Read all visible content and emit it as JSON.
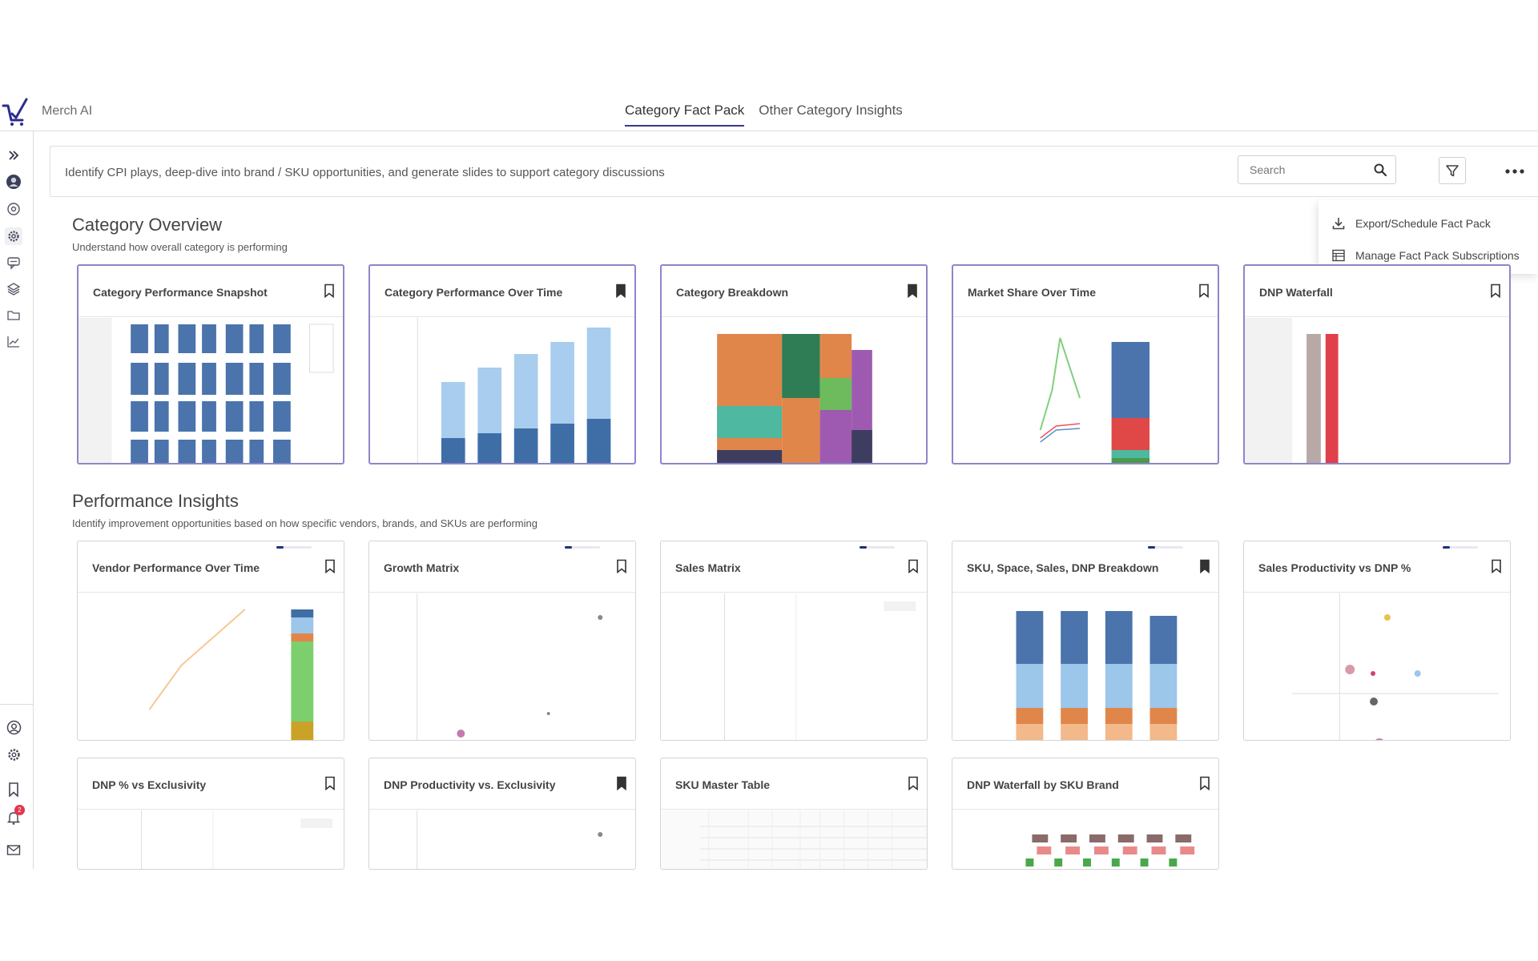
{
  "app": {
    "name": "Merch AI",
    "logo": "cart-check-icon",
    "accent": "#3a3a8c"
  },
  "tabs": [
    {
      "label": "Category Fact Pack",
      "active": true
    },
    {
      "label": "Other Category Insights",
      "active": false
    }
  ],
  "sidebar": {
    "top_icons": [
      "expand-icon",
      "avatar-icon",
      "target-icon",
      "gear-icon",
      "chat-icon",
      "layers-icon",
      "folder-icon",
      "chart-icon"
    ],
    "bottom_icons": [
      "user-circle-icon",
      "settings-icon",
      "bookmark-icon",
      "bell-icon",
      "mail-icon"
    ],
    "notification_count": "2"
  },
  "banner": {
    "text": "Identify CPI plays, deep-dive into brand / SKU opportunities, and generate slides to support category discussions",
    "search_placeholder": "Search"
  },
  "menu": {
    "items": [
      {
        "label": "Export/Schedule Fact Pack",
        "icon": "download-icon"
      },
      {
        "label": "Manage Fact Pack Subscriptions",
        "icon": "table-icon"
      }
    ]
  },
  "sections": [
    {
      "title": "Category Overview",
      "subtitle": "Understand how overall category is performing",
      "cards": [
        {
          "title": "Category Performance Snapshot",
          "bookmarked": false,
          "thumb": "bars-grid"
        },
        {
          "title": "Category Performance Over Time",
          "bookmarked": true,
          "thumb": "stacked-growth"
        },
        {
          "title": "Category Breakdown",
          "bookmarked": true,
          "thumb": "treemap"
        },
        {
          "title": "Market Share Over Time",
          "bookmarked": false,
          "thumb": "line-stack"
        },
        {
          "title": "DNP Waterfall",
          "bookmarked": false,
          "thumb": "waterfall"
        }
      ]
    },
    {
      "title": "Performance Insights",
      "subtitle": "Identify improvement opportunities based on how specific vendors, brands, and SKUs are performing",
      "cards": [
        {
          "title": "Vendor Performance Over Time",
          "bookmarked": false,
          "thumb": "vendor",
          "progress": 0.2
        },
        {
          "title": "Growth Matrix",
          "bookmarked": false,
          "thumb": "scatter",
          "progress": 0.2
        },
        {
          "title": "Sales Matrix",
          "bookmarked": false,
          "thumb": "blank-scatter",
          "progress": 0.2
        },
        {
          "title": "SKU, Space, Sales, DNP Breakdown",
          "bookmarked": true,
          "thumb": "four-stacks",
          "progress": 0.2
        },
        {
          "title": "Sales Productivity vs DNP %",
          "bookmarked": false,
          "thumb": "bubble",
          "progress": 0.2
        },
        {
          "title": "DNP % vs Exclusivity",
          "bookmarked": false,
          "thumb": "blank-scatter"
        },
        {
          "title": "DNP Productivity vs. Exclusivity",
          "bookmarked": true,
          "thumb": "scatter"
        },
        {
          "title": "SKU Master Table",
          "bookmarked": false,
          "thumb": "table"
        },
        {
          "title": "DNP Waterfall by SKU Brand",
          "bookmarked": false,
          "thumb": "mini-waterfall"
        }
      ]
    }
  ]
}
